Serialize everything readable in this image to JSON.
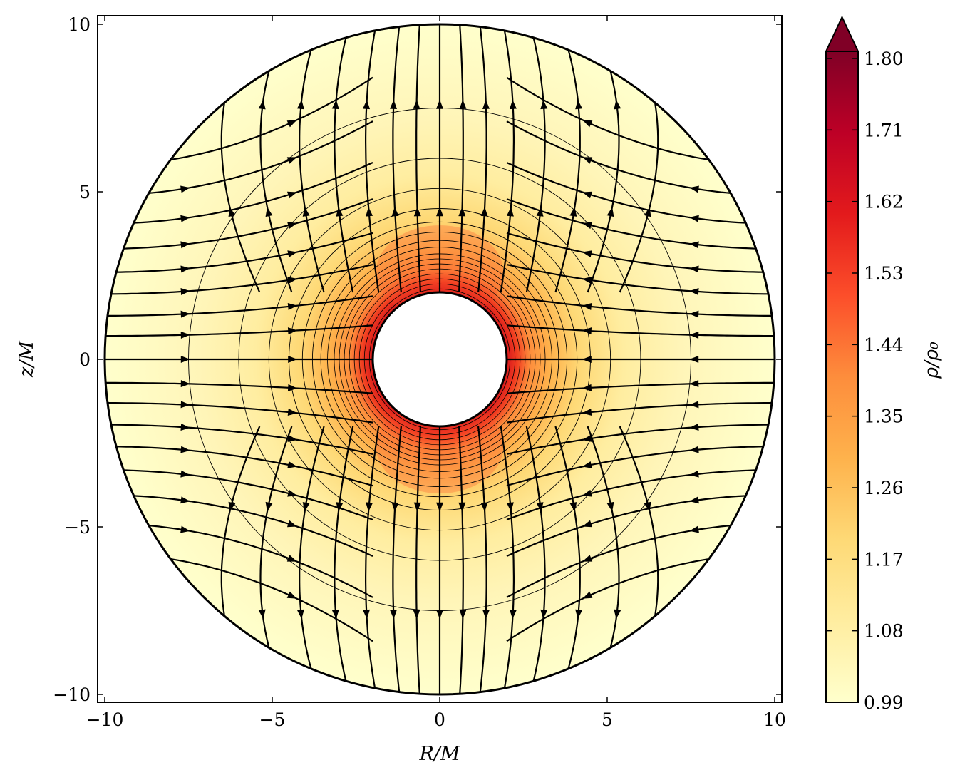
{
  "chart_data": {
    "type": "heatmap",
    "description_kind": "density field with streamlines in an annulus",
    "xlabel": "R/M",
    "ylabel": "z/M",
    "xlim": [
      -10.2,
      10.2
    ],
    "ylim": [
      -10.2,
      10.2
    ],
    "x_ticks": [
      -10,
      -5,
      0,
      5,
      10
    ],
    "y_ticks": [
      -10,
      -5,
      0,
      5,
      10
    ],
    "x_tick_labels": [
      "−10",
      "−5",
      "0",
      "5",
      "10"
    ],
    "y_tick_labels": [
      "−10",
      "−5",
      "0",
      "5",
      "10"
    ],
    "inner_radius": 2,
    "outer_radius": 10,
    "grid": false,
    "colorbar": {
      "label": "ρ/ρ₀",
      "min": 0.99,
      "max": 1.8,
      "extend": "max",
      "ticks": [
        0.99,
        1.08,
        1.17,
        1.26,
        1.35,
        1.44,
        1.53,
        1.62,
        1.71,
        1.8
      ],
      "tick_labels": [
        "0.99",
        "1.08",
        "1.17",
        "1.26",
        "1.35",
        "1.44",
        "1.53",
        "1.62",
        "1.71",
        "1.80"
      ],
      "colormap": [
        "#ffffcc",
        "#ffeda0",
        "#fed976",
        "#feb24c",
        "#fd8d3c",
        "#fc4e2a",
        "#e31a1c",
        "#bd0026",
        "#800026"
      ]
    },
    "density_contours_radii": [
      2.1,
      2.25,
      2.4,
      2.55,
      2.7,
      2.85,
      3.0,
      3.15,
      3.35,
      3.55,
      3.8,
      4.1,
      4.5,
      5.1,
      6.0,
      7.5
    ]
  }
}
